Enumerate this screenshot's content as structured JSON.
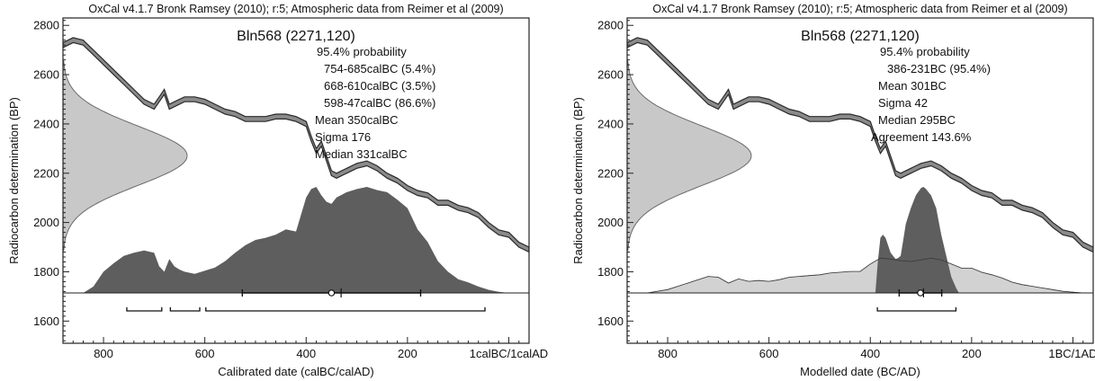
{
  "chart_data": [
    {
      "type": "area",
      "header": "OxCal v4.1.7 Bronk Ramsey (2010); r:5; Atmospheric data from Reimer et al (2009)",
      "title": "Bln568 (2271,120)",
      "stats": [
        "95.4% probability",
        "754-685calBC (5.4%)",
        "668-610calBC (3.5%)",
        "598-47calBC (86.6%)",
        "Mean 350calBC",
        "Sigma 176",
        "Median 331calBC"
      ],
      "xlabel": "Calibrated date (calBC/calAD)",
      "ylabel": "Radiocarbon determination (BP)",
      "x_ticks": [
        800,
        600,
        400,
        200,
        0
      ],
      "x_tick_labels": [
        "800",
        "600",
        "400",
        "200",
        "1calBC/1calAD"
      ],
      "y_ticks": [
        1600,
        1800,
        2000,
        2200,
        2400,
        2600,
        2800
      ],
      "xlim": [
        880,
        -40
      ],
      "ylim": [
        1510,
        2830
      ],
      "radiocarbon_date": {
        "mean": 2271,
        "sigma": 120
      },
      "calibration_curve": {
        "x": [
          880,
          860,
          840,
          820,
          800,
          780,
          760,
          740,
          720,
          700,
          690,
          680,
          670,
          660,
          640,
          620,
          600,
          580,
          560,
          540,
          520,
          500,
          480,
          460,
          440,
          420,
          400,
          390,
          380,
          370,
          360,
          350,
          340,
          320,
          300,
          280,
          260,
          240,
          220,
          200,
          180,
          160,
          140,
          120,
          100,
          80,
          60,
          40,
          20,
          0,
          -20,
          -40
        ],
        "y": [
          2720,
          2740,
          2730,
          2690,
          2650,
          2610,
          2570,
          2530,
          2490,
          2470,
          2500,
          2530,
          2470,
          2480,
          2500,
          2500,
          2490,
          2470,
          2450,
          2440,
          2420,
          2420,
          2420,
          2430,
          2430,
          2420,
          2400,
          2340,
          2290,
          2320,
          2260,
          2200,
          2190,
          2210,
          2230,
          2240,
          2220,
          2190,
          2170,
          2140,
          2120,
          2110,
          2080,
          2080,
          2060,
          2050,
          2030,
          1990,
          1960,
          1950,
          1910,
          1890
        ],
        "band_width": 20
      },
      "probability_distribution": {
        "x": [
          840,
          820,
          800,
          780,
          760,
          740,
          720,
          700,
          690,
          680,
          670,
          660,
          650,
          640,
          620,
          600,
          580,
          560,
          540,
          520,
          500,
          480,
          460,
          440,
          420,
          400,
          390,
          380,
          370,
          360,
          350,
          340,
          320,
          300,
          280,
          260,
          240,
          220,
          200,
          180,
          160,
          140,
          120,
          100,
          80,
          60,
          40,
          20,
          0
        ],
        "density": [
          0.0,
          0.06,
          0.2,
          0.28,
          0.35,
          0.38,
          0.4,
          0.38,
          0.25,
          0.2,
          0.32,
          0.25,
          0.22,
          0.2,
          0.18,
          0.21,
          0.24,
          0.3,
          0.38,
          0.45,
          0.5,
          0.52,
          0.55,
          0.6,
          0.58,
          0.9,
          0.98,
          1.0,
          0.92,
          0.86,
          0.84,
          0.9,
          0.95,
          0.98,
          1.0,
          0.97,
          0.95,
          0.88,
          0.8,
          0.6,
          0.48,
          0.3,
          0.2,
          0.13,
          0.1,
          0.06,
          0.03,
          0.01,
          0.0
        ]
      },
      "markers": {
        "mean": 350,
        "median": 331,
        "sigma_range": [
          526,
          174
        ],
        "ranges_95": [
          [
            754,
            685
          ],
          [
            668,
            610
          ],
          [
            598,
            47
          ]
        ]
      }
    },
    {
      "type": "area",
      "header": "OxCal v4.1.7 Bronk Ramsey (2010); r:5; Atmospheric data from Reimer et al (2009)",
      "title": "Bln568 (2271,120)",
      "stats": [
        "95.4% probability",
        "386-231BC (95.4%)",
        "Mean 301BC",
        "Sigma 42",
        "Median 295BC",
        "Agreement 143.6%"
      ],
      "xlabel": "Modelled date (BC/AD)",
      "ylabel": "Radiocarbon determination (BP)",
      "x_ticks": [
        800,
        600,
        400,
        200,
        0
      ],
      "x_tick_labels": [
        "800",
        "600",
        "400",
        "200",
        "1BC/1AD"
      ],
      "y_ticks": [
        1600,
        1800,
        2000,
        2200,
        2400,
        2600,
        2800
      ],
      "xlim": [
        880,
        -40
      ],
      "ylim": [
        1510,
        2830
      ],
      "radiocarbon_date": {
        "mean": 2271,
        "sigma": 120
      },
      "calibration_curve": {
        "x": [
          880,
          860,
          840,
          820,
          800,
          780,
          760,
          740,
          720,
          700,
          690,
          680,
          670,
          660,
          640,
          620,
          600,
          580,
          560,
          540,
          520,
          500,
          480,
          460,
          440,
          420,
          400,
          390,
          380,
          370,
          360,
          350,
          340,
          320,
          300,
          280,
          260,
          240,
          220,
          200,
          180,
          160,
          140,
          120,
          100,
          80,
          60,
          40,
          20,
          0,
          -20,
          -40
        ],
        "y": [
          2720,
          2740,
          2730,
          2690,
          2650,
          2610,
          2570,
          2530,
          2490,
          2470,
          2500,
          2530,
          2470,
          2480,
          2500,
          2500,
          2490,
          2470,
          2450,
          2440,
          2420,
          2420,
          2420,
          2430,
          2430,
          2420,
          2400,
          2340,
          2290,
          2320,
          2260,
          2200,
          2190,
          2210,
          2230,
          2240,
          2220,
          2190,
          2170,
          2140,
          2120,
          2110,
          2080,
          2080,
          2060,
          2050,
          2030,
          1990,
          1960,
          1950,
          1910,
          1890
        ],
        "band_width": 20
      },
      "prior_distribution": {
        "x": [
          840,
          800,
          760,
          720,
          700,
          680,
          660,
          640,
          620,
          600,
          580,
          560,
          540,
          520,
          500,
          480,
          460,
          440,
          420,
          400,
          380,
          360,
          340,
          320,
          300,
          280,
          260,
          240,
          220,
          200,
          180,
          160,
          140,
          120,
          100,
          80,
          60,
          40,
          20,
          0,
          -20
        ],
        "density": [
          0.0,
          0.04,
          0.12,
          0.2,
          0.19,
          0.12,
          0.17,
          0.14,
          0.15,
          0.14,
          0.16,
          0.19,
          0.2,
          0.21,
          0.22,
          0.24,
          0.25,
          0.26,
          0.26,
          0.35,
          0.42,
          0.41,
          0.39,
          0.38,
          0.4,
          0.42,
          0.4,
          0.35,
          0.3,
          0.3,
          0.25,
          0.22,
          0.18,
          0.13,
          0.1,
          0.08,
          0.06,
          0.04,
          0.02,
          0.01,
          0.0
        ]
      },
      "posterior_distribution": {
        "x": [
          390,
          385,
          380,
          375,
          370,
          365,
          360,
          355,
          350,
          345,
          340,
          335,
          330,
          320,
          310,
          300,
          295,
          290,
          280,
          270,
          260,
          250,
          240,
          230,
          225
        ],
        "density": [
          0.0,
          0.3,
          0.52,
          0.55,
          0.52,
          0.45,
          0.38,
          0.35,
          0.32,
          0.33,
          0.35,
          0.5,
          0.65,
          0.8,
          0.92,
          0.99,
          1.0,
          0.98,
          0.92,
          0.8,
          0.55,
          0.35,
          0.15,
          0.04,
          0.0
        ]
      },
      "markers": {
        "mean": 301,
        "median": 295,
        "sigma_range": [
          343,
          259
        ],
        "ranges_95": [
          [
            386,
            231
          ]
        ]
      }
    }
  ]
}
